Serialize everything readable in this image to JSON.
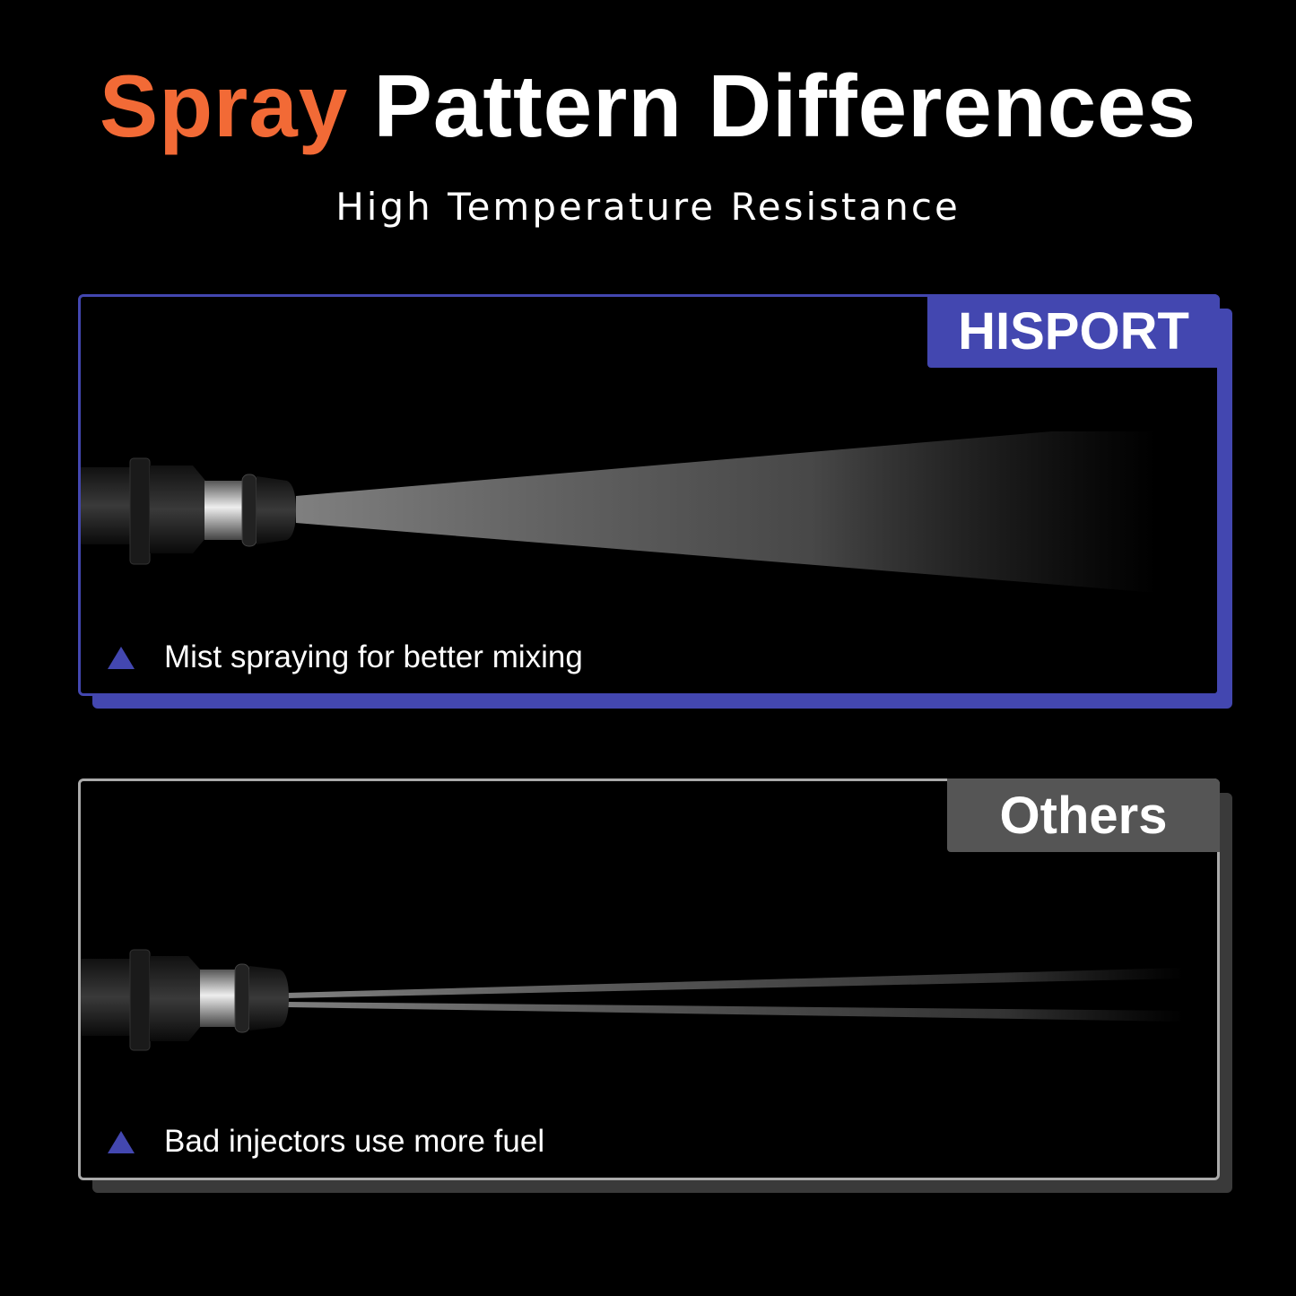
{
  "header": {
    "title_accent": "Spray",
    "title_rest": "Pattern Differences",
    "subtitle": "High Temperature Resistance"
  },
  "panels": [
    {
      "tag": "HISPORT",
      "caption": "Mist spraying for better mixing",
      "color": "#4347b0",
      "spray": "wide-mist"
    },
    {
      "tag": "Others",
      "caption": "Bad injectors use more fuel",
      "color": "#555555",
      "spray": "narrow-streams"
    }
  ],
  "colors": {
    "accent": "#f26a36",
    "brand": "#4347b0",
    "bullet": "#4347b0"
  }
}
